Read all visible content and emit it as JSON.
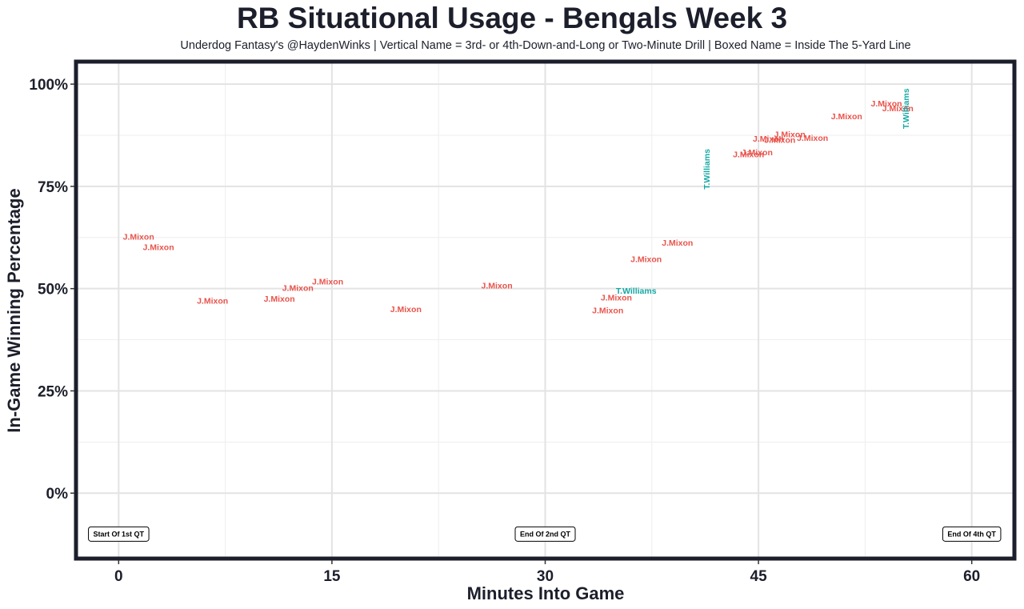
{
  "chart_data": {
    "type": "scatter",
    "title": "RB Situational Usage - Bengals Week 3",
    "subtitle": "Underdog Fantasy's @HaydenWinks | Vertical Name = 3rd- or 4th-Down-and-Long or Two-Minute Drill | Boxed Name = Inside The 5-Yard Line",
    "xlabel": "Minutes Into Game",
    "ylabel": "In-Game Winning Percentage",
    "xlim": [
      -3,
      63
    ],
    "ylim": [
      -0.16,
      1.055
    ],
    "x_ticks": [
      0,
      15,
      30,
      45,
      60
    ],
    "x_tick_labels": [
      "0",
      "15",
      "30",
      "45",
      "60"
    ],
    "y_ticks": [
      0,
      0.25,
      0.5,
      0.75,
      1.0
    ],
    "y_tick_labels": [
      "0%",
      "25%",
      "50%",
      "75%",
      "100%"
    ],
    "grid": true,
    "colors": {
      "J.Mixon": "#e8544c",
      "T.Williams": "#14a8a4"
    },
    "points": [
      {
        "label": "J.Mixon",
        "x": 1.4,
        "y": 0.626,
        "vertical": false
      },
      {
        "label": "J.Mixon",
        "x": 2.8,
        "y": 0.6,
        "vertical": false
      },
      {
        "label": "J.Mixon",
        "x": 6.6,
        "y": 0.469,
        "vertical": false
      },
      {
        "label": "J.Mixon",
        "x": 11.3,
        "y": 0.474,
        "vertical": false
      },
      {
        "label": "J.Mixon",
        "x": 12.6,
        "y": 0.5,
        "vertical": false
      },
      {
        "label": "J.Mixon",
        "x": 14.7,
        "y": 0.516,
        "vertical": false
      },
      {
        "label": "J.Mixon",
        "x": 20.2,
        "y": 0.448,
        "vertical": false
      },
      {
        "label": "J.Mixon",
        "x": 26.6,
        "y": 0.506,
        "vertical": false
      },
      {
        "label": "J.Mixon",
        "x": 34.4,
        "y": 0.446,
        "vertical": false
      },
      {
        "label": "J.Mixon",
        "x": 35.0,
        "y": 0.477,
        "vertical": false
      },
      {
        "label": "T.Williams",
        "x": 36.4,
        "y": 0.493,
        "vertical": false
      },
      {
        "label": "J.Mixon",
        "x": 37.1,
        "y": 0.571,
        "vertical": false
      },
      {
        "label": "J.Mixon",
        "x": 39.3,
        "y": 0.611,
        "vertical": false
      },
      {
        "label": "T.Williams",
        "x": 41.4,
        "y": 0.792,
        "vertical": true
      },
      {
        "label": "J.Mixon",
        "x": 44.3,
        "y": 0.827,
        "vertical": false
      },
      {
        "label": "J.Mixon",
        "x": 44.9,
        "y": 0.832,
        "vertical": false
      },
      {
        "label": "J.Mixon",
        "x": 45.7,
        "y": 0.865,
        "vertical": false
      },
      {
        "label": "J.Mixon",
        "x": 46.5,
        "y": 0.862,
        "vertical": false
      },
      {
        "label": "J.Mixon",
        "x": 47.2,
        "y": 0.876,
        "vertical": false
      },
      {
        "label": "J.Mixon",
        "x": 48.8,
        "y": 0.867,
        "vertical": false
      },
      {
        "label": "J.Mixon",
        "x": 51.2,
        "y": 0.92,
        "vertical": false
      },
      {
        "label": "J.Mixon",
        "x": 54.0,
        "y": 0.951,
        "vertical": false
      },
      {
        "label": "J.Mixon",
        "x": 54.8,
        "y": 0.94,
        "vertical": false
      },
      {
        "label": "T.Williams",
        "x": 55.4,
        "y": 0.94,
        "vertical": true
      }
    ],
    "annotations": [
      {
        "text": "Start Of 1st QT",
        "x": 0,
        "y": -0.1
      },
      {
        "text": "End Of 2nd QT",
        "x": 30,
        "y": -0.1
      },
      {
        "text": "End Of 4th QT",
        "x": 60,
        "y": -0.1
      }
    ]
  }
}
